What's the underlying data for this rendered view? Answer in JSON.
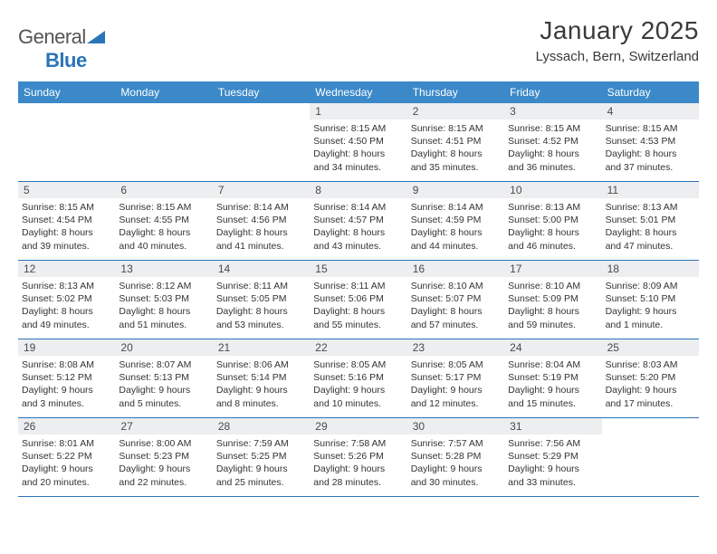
{
  "logo": {
    "text_general": "General",
    "text_blue": "Blue"
  },
  "title": "January 2025",
  "subtitle": "Lyssach, Bern, Switzerland",
  "colors": {
    "header_bg": "#3b89c9",
    "border": "#2a74b8",
    "daynum_bg": "#eceef0",
    "text": "#333333"
  },
  "weekdays": [
    "Sunday",
    "Monday",
    "Tuesday",
    "Wednesday",
    "Thursday",
    "Friday",
    "Saturday"
  ],
  "weeks": [
    [
      {
        "n": "",
        "sr": "",
        "ss": "",
        "d1": "",
        "d2": ""
      },
      {
        "n": "",
        "sr": "",
        "ss": "",
        "d1": "",
        "d2": ""
      },
      {
        "n": "",
        "sr": "",
        "ss": "",
        "d1": "",
        "d2": ""
      },
      {
        "n": "1",
        "sr": "Sunrise: 8:15 AM",
        "ss": "Sunset: 4:50 PM",
        "d1": "Daylight: 8 hours",
        "d2": "and 34 minutes."
      },
      {
        "n": "2",
        "sr": "Sunrise: 8:15 AM",
        "ss": "Sunset: 4:51 PM",
        "d1": "Daylight: 8 hours",
        "d2": "and 35 minutes."
      },
      {
        "n": "3",
        "sr": "Sunrise: 8:15 AM",
        "ss": "Sunset: 4:52 PM",
        "d1": "Daylight: 8 hours",
        "d2": "and 36 minutes."
      },
      {
        "n": "4",
        "sr": "Sunrise: 8:15 AM",
        "ss": "Sunset: 4:53 PM",
        "d1": "Daylight: 8 hours",
        "d2": "and 37 minutes."
      }
    ],
    [
      {
        "n": "5",
        "sr": "Sunrise: 8:15 AM",
        "ss": "Sunset: 4:54 PM",
        "d1": "Daylight: 8 hours",
        "d2": "and 39 minutes."
      },
      {
        "n": "6",
        "sr": "Sunrise: 8:15 AM",
        "ss": "Sunset: 4:55 PM",
        "d1": "Daylight: 8 hours",
        "d2": "and 40 minutes."
      },
      {
        "n": "7",
        "sr": "Sunrise: 8:14 AM",
        "ss": "Sunset: 4:56 PM",
        "d1": "Daylight: 8 hours",
        "d2": "and 41 minutes."
      },
      {
        "n": "8",
        "sr": "Sunrise: 8:14 AM",
        "ss": "Sunset: 4:57 PM",
        "d1": "Daylight: 8 hours",
        "d2": "and 43 minutes."
      },
      {
        "n": "9",
        "sr": "Sunrise: 8:14 AM",
        "ss": "Sunset: 4:59 PM",
        "d1": "Daylight: 8 hours",
        "d2": "and 44 minutes."
      },
      {
        "n": "10",
        "sr": "Sunrise: 8:13 AM",
        "ss": "Sunset: 5:00 PM",
        "d1": "Daylight: 8 hours",
        "d2": "and 46 minutes."
      },
      {
        "n": "11",
        "sr": "Sunrise: 8:13 AM",
        "ss": "Sunset: 5:01 PM",
        "d1": "Daylight: 8 hours",
        "d2": "and 47 minutes."
      }
    ],
    [
      {
        "n": "12",
        "sr": "Sunrise: 8:13 AM",
        "ss": "Sunset: 5:02 PM",
        "d1": "Daylight: 8 hours",
        "d2": "and 49 minutes."
      },
      {
        "n": "13",
        "sr": "Sunrise: 8:12 AM",
        "ss": "Sunset: 5:03 PM",
        "d1": "Daylight: 8 hours",
        "d2": "and 51 minutes."
      },
      {
        "n": "14",
        "sr": "Sunrise: 8:11 AM",
        "ss": "Sunset: 5:05 PM",
        "d1": "Daylight: 8 hours",
        "d2": "and 53 minutes."
      },
      {
        "n": "15",
        "sr": "Sunrise: 8:11 AM",
        "ss": "Sunset: 5:06 PM",
        "d1": "Daylight: 8 hours",
        "d2": "and 55 minutes."
      },
      {
        "n": "16",
        "sr": "Sunrise: 8:10 AM",
        "ss": "Sunset: 5:07 PM",
        "d1": "Daylight: 8 hours",
        "d2": "and 57 minutes."
      },
      {
        "n": "17",
        "sr": "Sunrise: 8:10 AM",
        "ss": "Sunset: 5:09 PM",
        "d1": "Daylight: 8 hours",
        "d2": "and 59 minutes."
      },
      {
        "n": "18",
        "sr": "Sunrise: 8:09 AM",
        "ss": "Sunset: 5:10 PM",
        "d1": "Daylight: 9 hours",
        "d2": "and 1 minute."
      }
    ],
    [
      {
        "n": "19",
        "sr": "Sunrise: 8:08 AM",
        "ss": "Sunset: 5:12 PM",
        "d1": "Daylight: 9 hours",
        "d2": "and 3 minutes."
      },
      {
        "n": "20",
        "sr": "Sunrise: 8:07 AM",
        "ss": "Sunset: 5:13 PM",
        "d1": "Daylight: 9 hours",
        "d2": "and 5 minutes."
      },
      {
        "n": "21",
        "sr": "Sunrise: 8:06 AM",
        "ss": "Sunset: 5:14 PM",
        "d1": "Daylight: 9 hours",
        "d2": "and 8 minutes."
      },
      {
        "n": "22",
        "sr": "Sunrise: 8:05 AM",
        "ss": "Sunset: 5:16 PM",
        "d1": "Daylight: 9 hours",
        "d2": "and 10 minutes."
      },
      {
        "n": "23",
        "sr": "Sunrise: 8:05 AM",
        "ss": "Sunset: 5:17 PM",
        "d1": "Daylight: 9 hours",
        "d2": "and 12 minutes."
      },
      {
        "n": "24",
        "sr": "Sunrise: 8:04 AM",
        "ss": "Sunset: 5:19 PM",
        "d1": "Daylight: 9 hours",
        "d2": "and 15 minutes."
      },
      {
        "n": "25",
        "sr": "Sunrise: 8:03 AM",
        "ss": "Sunset: 5:20 PM",
        "d1": "Daylight: 9 hours",
        "d2": "and 17 minutes."
      }
    ],
    [
      {
        "n": "26",
        "sr": "Sunrise: 8:01 AM",
        "ss": "Sunset: 5:22 PM",
        "d1": "Daylight: 9 hours",
        "d2": "and 20 minutes."
      },
      {
        "n": "27",
        "sr": "Sunrise: 8:00 AM",
        "ss": "Sunset: 5:23 PM",
        "d1": "Daylight: 9 hours",
        "d2": "and 22 minutes."
      },
      {
        "n": "28",
        "sr": "Sunrise: 7:59 AM",
        "ss": "Sunset: 5:25 PM",
        "d1": "Daylight: 9 hours",
        "d2": "and 25 minutes."
      },
      {
        "n": "29",
        "sr": "Sunrise: 7:58 AM",
        "ss": "Sunset: 5:26 PM",
        "d1": "Daylight: 9 hours",
        "d2": "and 28 minutes."
      },
      {
        "n": "30",
        "sr": "Sunrise: 7:57 AM",
        "ss": "Sunset: 5:28 PM",
        "d1": "Daylight: 9 hours",
        "d2": "and 30 minutes."
      },
      {
        "n": "31",
        "sr": "Sunrise: 7:56 AM",
        "ss": "Sunset: 5:29 PM",
        "d1": "Daylight: 9 hours",
        "d2": "and 33 minutes."
      },
      {
        "n": "",
        "sr": "",
        "ss": "",
        "d1": "",
        "d2": ""
      }
    ]
  ]
}
